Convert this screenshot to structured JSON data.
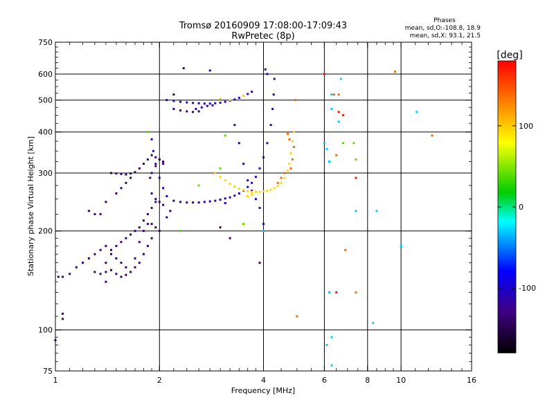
{
  "chart_data": {
    "type": "scatter",
    "title": "Tromsø 20160909 17:08:00-17:09:43",
    "subtitle": "RwPretec (8p)",
    "xlabel": "Frequency [MHz]",
    "ylabel": "Stationary phase Virtual Height [km]",
    "x_scale": "log",
    "y_scale": "log",
    "xlim": [
      1,
      16
    ],
    "ylim": [
      75,
      750
    ],
    "x_ticks": [
      1,
      2,
      4,
      6,
      8,
      10,
      16
    ],
    "x_tick_labels": [
      "1",
      "2",
      "4",
      "6",
      "8",
      "10",
      "16"
    ],
    "x_major_grid": [
      2,
      4,
      6,
      8,
      10
    ],
    "y_ticks": [
      75,
      100,
      200,
      300,
      400,
      500,
      600,
      750
    ],
    "y_tick_labels": [
      "75",
      "100",
      "200",
      "300",
      "400",
      "500",
      "600",
      "750"
    ],
    "y_major_grid": [
      100,
      200,
      300,
      400,
      500,
      600
    ],
    "grid": true,
    "phases_header": "Phases",
    "stats": [
      "mean, sd,O:-108.8, 18.9",
      "mean, sd,X:  93.1, 21.5"
    ],
    "colorbar": {
      "label": "[deg]",
      "range": [
        -180,
        180
      ],
      "ticks": [
        100,
        0,
        -100
      ],
      "tick_labels": [
        "100",
        "0",
        "-100"
      ],
      "colors": [
        "#ff0000",
        "#ff7f00",
        "#ffff00",
        "#00cc00",
        "#00ffff",
        "#0000ff",
        "#400080",
        "#000000"
      ]
    },
    "series": [
      {
        "phase": -110,
        "points": [
          [
            1.9,
            380
          ],
          [
            1.92,
            350
          ],
          [
            1.95,
            320
          ],
          [
            2.0,
            290
          ],
          [
            2.05,
            270
          ],
          [
            2.1,
            255
          ],
          [
            2.2,
            247
          ],
          [
            2.3,
            245
          ],
          [
            2.4,
            244
          ],
          [
            2.5,
            244
          ],
          [
            2.6,
            244
          ],
          [
            2.7,
            245
          ],
          [
            2.8,
            246
          ],
          [
            2.9,
            247
          ],
          [
            3.0,
            249
          ],
          [
            3.1,
            251
          ],
          [
            3.2,
            253
          ],
          [
            3.3,
            256
          ],
          [
            3.4,
            260
          ],
          [
            3.5,
            265
          ],
          [
            3.6,
            272
          ],
          [
            3.7,
            280
          ],
          [
            3.8,
            292
          ],
          [
            3.9,
            310
          ],
          [
            4.0,
            335
          ],
          [
            4.1,
            370
          ],
          [
            4.2,
            420
          ],
          [
            4.25,
            470
          ],
          [
            4.28,
            520
          ],
          [
            4.3,
            580
          ],
          [
            4.05,
            620
          ],
          [
            4.1,
            600
          ],
          [
            2.1,
            500
          ],
          [
            2.2,
            497
          ],
          [
            2.3,
            494
          ],
          [
            2.4,
            492
          ],
          [
            2.5,
            490
          ],
          [
            2.6,
            489
          ],
          [
            2.7,
            488
          ],
          [
            2.8,
            488
          ],
          [
            2.9,
            489
          ],
          [
            3.0,
            491
          ],
          [
            3.1,
            494
          ],
          [
            3.2,
            498
          ],
          [
            3.3,
            502
          ],
          [
            3.4,
            508
          ],
          [
            3.5,
            515
          ],
          [
            3.6,
            522
          ],
          [
            3.7,
            530
          ],
          [
            2.55,
            470
          ],
          [
            2.65,
            475
          ],
          [
            2.75,
            480
          ],
          [
            2.85,
            482
          ],
          [
            3.3,
            420
          ],
          [
            3.4,
            370
          ],
          [
            3.5,
            320
          ],
          [
            3.6,
            285
          ],
          [
            3.7,
            265
          ],
          [
            3.8,
            250
          ],
          [
            3.9,
            235
          ],
          [
            2.8,
            615
          ],
          [
            2.9,
            300
          ],
          [
            4.0,
            210
          ],
          [
            3.1,
            243
          ]
        ]
      },
      {
        "phase": -140,
        "points": [
          [
            1.05,
            145
          ],
          [
            1.1,
            148
          ],
          [
            1.15,
            155
          ],
          [
            1.2,
            160
          ],
          [
            1.25,
            165
          ],
          [
            1.3,
            170
          ],
          [
            1.35,
            175
          ],
          [
            1.4,
            180
          ],
          [
            1.45,
            170
          ],
          [
            1.5,
            165
          ],
          [
            1.55,
            160
          ],
          [
            1.6,
            155
          ],
          [
            1.65,
            150
          ],
          [
            1.7,
            155
          ],
          [
            1.75,
            160
          ],
          [
            1.8,
            170
          ],
          [
            1.85,
            180
          ],
          [
            1.9,
            190
          ],
          [
            1.3,
            150
          ],
          [
            1.35,
            148
          ],
          [
            1.4,
            150
          ],
          [
            1.45,
            152
          ],
          [
            1.5,
            148
          ],
          [
            1.55,
            145
          ],
          [
            1.6,
            147
          ],
          [
            1.65,
            150
          ],
          [
            1.7,
            165
          ],
          [
            1.75,
            185
          ],
          [
            1.8,
            200
          ],
          [
            1.85,
            210
          ],
          [
            1.4,
            160
          ],
          [
            1.45,
            175
          ],
          [
            1.5,
            180
          ],
          [
            1.55,
            185
          ],
          [
            1.6,
            190
          ],
          [
            1.65,
            195
          ],
          [
            1.7,
            200
          ],
          [
            1.75,
            205
          ],
          [
            1.8,
            215
          ],
          [
            1.85,
            225
          ],
          [
            1.9,
            235
          ],
          [
            1.95,
            245
          ],
          [
            1.25,
            230
          ],
          [
            1.3,
            225
          ],
          [
            1.35,
            225
          ],
          [
            1.4,
            245
          ],
          [
            1.5,
            260
          ],
          [
            1.55,
            270
          ],
          [
            1.6,
            280
          ],
          [
            1.65,
            290
          ],
          [
            1.45,
            300
          ],
          [
            1.5,
            299
          ],
          [
            1.55,
            298
          ],
          [
            1.6,
            297
          ],
          [
            1.65,
            299
          ],
          [
            1.7,
            302
          ],
          [
            1.75,
            310
          ],
          [
            1.8,
            320
          ],
          [
            1.85,
            330
          ],
          [
            1.9,
            340
          ],
          [
            1.95,
            335
          ],
          [
            2.0,
            330
          ],
          [
            2.05,
            325
          ],
          [
            1.95,
            315
          ],
          [
            1.9,
            300
          ],
          [
            1.88,
            290
          ],
          [
            1.9,
            260
          ],
          [
            1.95,
            250
          ],
          [
            2.0,
            245
          ],
          [
            2.05,
            240
          ],
          [
            1.9,
            210
          ],
          [
            1.95,
            205
          ],
          [
            2.0,
            200
          ],
          [
            2.1,
            220
          ],
          [
            2.15,
            230
          ],
          [
            2.2,
            470
          ],
          [
            2.3,
            465
          ],
          [
            2.4,
            462
          ],
          [
            2.5,
            460
          ],
          [
            2.6,
            462
          ],
          [
            2.2,
            520
          ],
          [
            2.0,
            330
          ],
          [
            2.05,
            320
          ],
          [
            1.4,
            140
          ],
          [
            1.02,
            145
          ],
          [
            1.05,
            108
          ],
          [
            1.05,
            112
          ],
          [
            1.0,
            93
          ],
          [
            2.35,
            625
          ],
          [
            3.9,
            160
          ],
          [
            3.2,
            190
          ],
          [
            3.0,
            205
          ]
        ]
      },
      {
        "phase": 95,
        "points": [
          [
            2.9,
            300
          ],
          [
            3.0,
            292
          ],
          [
            3.1,
            285
          ],
          [
            3.2,
            278
          ],
          [
            3.3,
            273
          ],
          [
            3.4,
            269
          ],
          [
            3.5,
            266
          ],
          [
            3.6,
            264
          ],
          [
            3.7,
            263
          ],
          [
            3.8,
            263
          ],
          [
            3.9,
            263
          ],
          [
            4.0,
            264
          ],
          [
            4.1,
            265
          ],
          [
            4.2,
            267
          ],
          [
            4.3,
            270
          ],
          [
            4.4,
            274
          ],
          [
            4.5,
            280
          ],
          [
            4.6,
            290
          ],
          [
            4.7,
            305
          ],
          [
            4.75,
            320
          ],
          [
            4.8,
            345
          ],
          [
            4.85,
            375
          ],
          [
            4.9,
            400
          ],
          [
            3.0,
            505
          ],
          [
            3.2,
            500
          ],
          [
            3.5,
            515
          ],
          [
            3.6,
            255
          ],
          [
            3.7,
            258
          ]
        ]
      },
      {
        "phase": 140,
        "points": [
          [
            4.4,
            280
          ],
          [
            4.5,
            290
          ],
          [
            4.6,
            300
          ],
          [
            4.8,
            310
          ],
          [
            4.85,
            330
          ],
          [
            4.9,
            360
          ],
          [
            4.7,
            395
          ],
          [
            4.75,
            380
          ],
          [
            4.95,
            500
          ],
          [
            6.6,
            520
          ],
          [
            6.4,
            520
          ],
          [
            9.6,
            610
          ],
          [
            12.3,
            390
          ],
          [
            5.0,
            110
          ],
          [
            6.5,
            340
          ],
          [
            6.9,
            175
          ],
          [
            7.4,
            130
          ]
        ]
      },
      {
        "phase": 170,
        "points": [
          [
            6.0,
            600
          ],
          [
            6.6,
            460
          ],
          [
            6.8,
            450
          ],
          [
            6.5,
            130
          ],
          [
            7.4,
            290
          ]
        ]
      },
      {
        "phase": 40,
        "points": [
          [
            3.1,
            390
          ],
          [
            3.0,
            310
          ],
          [
            3.5,
            210
          ],
          [
            6.8,
            370
          ],
          [
            7.3,
            370
          ],
          [
            7.4,
            330
          ],
          [
            2.6,
            275
          ],
          [
            1.85,
            400
          ],
          [
            2.3,
            200
          ]
        ]
      },
      {
        "phase": -30,
        "points": [
          [
            6.3,
            520
          ],
          [
            6.3,
            470
          ],
          [
            6.6,
            430
          ],
          [
            6.0,
            370
          ],
          [
            6.2,
            325
          ],
          [
            6.3,
            95
          ],
          [
            6.1,
            90
          ],
          [
            6.7,
            580
          ],
          [
            6.3,
            78
          ],
          [
            4.0,
            200
          ],
          [
            8.5,
            230
          ],
          [
            10.0,
            180
          ],
          [
            11.1,
            460
          ],
          [
            8.3,
            105
          ],
          [
            7.4,
            230
          ],
          [
            6.2,
            130
          ],
          [
            6.1,
            355
          ]
        ]
      }
    ]
  }
}
